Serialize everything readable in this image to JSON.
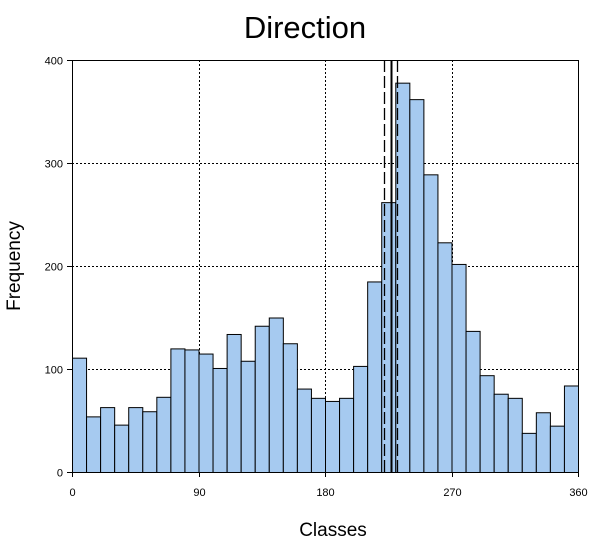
{
  "chart_data": {
    "type": "bar",
    "title": "Direction",
    "xlabel": "Classes",
    "ylabel": "Frequency",
    "xlim": [
      0,
      360
    ],
    "ylim": [
      0,
      400
    ],
    "bin_width": 10,
    "x_ticks": [
      0,
      90,
      180,
      270,
      360
    ],
    "x_tick_labels": [
      "0",
      "90",
      "180",
      "270",
      "360"
    ],
    "y_ticks": [
      0,
      100,
      200,
      300,
      400
    ],
    "y_tick_labels": [
      "0",
      "100",
      "200",
      "300",
      "400"
    ],
    "grid": "dotted, at major ticks",
    "bar_color": "#A6CAF0",
    "bin_starts": [
      0,
      10,
      20,
      30,
      40,
      50,
      60,
      70,
      80,
      90,
      100,
      110,
      120,
      130,
      140,
      150,
      160,
      170,
      180,
      190,
      200,
      210,
      220,
      230,
      240,
      250,
      260,
      270,
      280,
      290,
      300,
      310,
      320,
      330,
      340,
      350
    ],
    "values": [
      111,
      54,
      63,
      46,
      63,
      59,
      73,
      120,
      119,
      115,
      101,
      134,
      108,
      142,
      150,
      125,
      81,
      72,
      69,
      72,
      103,
      185,
      262,
      378,
      362,
      289,
      223,
      202,
      137,
      94,
      76,
      72,
      38,
      58,
      45,
      84
    ],
    "reference_lines": [
      {
        "x": 222,
        "style": "dashed"
      },
      {
        "x": 227,
        "style": "solid"
      },
      {
        "x": 231,
        "style": "dashed"
      }
    ]
  }
}
